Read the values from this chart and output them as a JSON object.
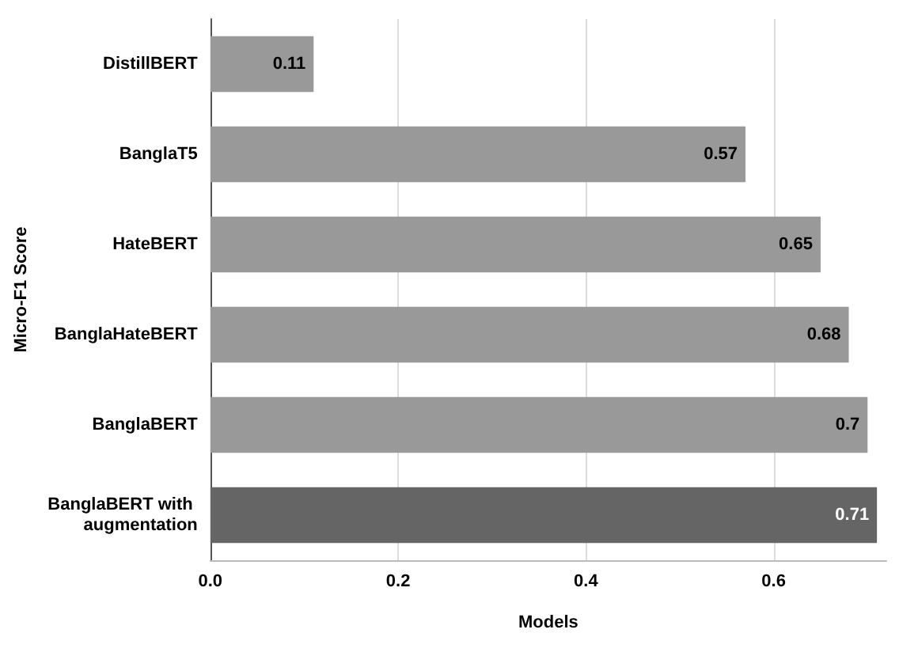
{
  "chart_data": {
    "type": "bar",
    "orientation": "horizontal",
    "xlabel": "Models",
    "ylabel": "Micro-F1 Score",
    "categories": [
      "DistillBERT",
      "BanglaT5",
      "HateBERT",
      "BanglaHateBERT",
      "BanglaBERT",
      "BanglaBERT with augmentation"
    ],
    "values": [
      0.11,
      0.57,
      0.65,
      0.68,
      0.7,
      0.71
    ],
    "colors": [
      "#999999",
      "#999999",
      "#999999",
      "#999999",
      "#999999",
      "#656565"
    ],
    "xlim": [
      0,
      0.72
    ],
    "xticks": [
      {
        "value": 0,
        "label": "0.0"
      },
      0.2,
      0.4,
      0.6
    ],
    "data_labels": true,
    "grid": "x"
  }
}
